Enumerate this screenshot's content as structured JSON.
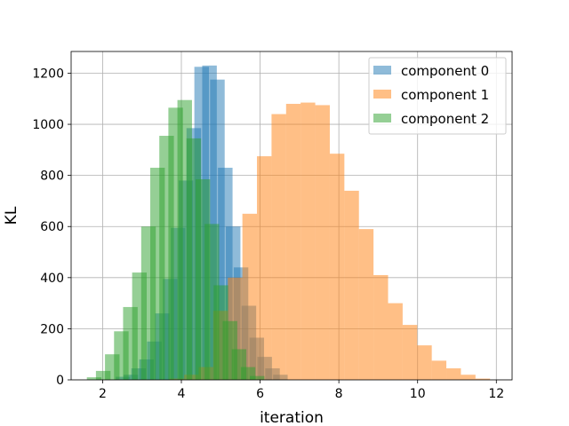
{
  "chart_data": {
    "type": "histogram",
    "xlabel": "iteration",
    "ylabel": "KL",
    "xlim": [
      1.2,
      12.4
    ],
    "ylim": [
      0,
      1285
    ],
    "xticks": [
      2,
      4,
      6,
      8,
      10,
      12
    ],
    "yticks": [
      0,
      200,
      400,
      600,
      800,
      1000,
      1200
    ],
    "grid": true,
    "legend_position": "top-right",
    "bin_width": 0.37,
    "series": [
      {
        "name": "component 0",
        "color": "#1f77b4",
        "opacity": 0.5,
        "bins": [
          {
            "x": 2.33,
            "count": 12
          },
          {
            "x": 2.53,
            "count": 20
          },
          {
            "x": 2.73,
            "count": 45
          },
          {
            "x": 2.93,
            "count": 80
          },
          {
            "x": 3.13,
            "count": 150
          },
          {
            "x": 3.33,
            "count": 260
          },
          {
            "x": 3.53,
            "count": 395
          },
          {
            "x": 3.73,
            "count": 595
          },
          {
            "x": 3.93,
            "count": 780
          },
          {
            "x": 4.13,
            "count": 985
          },
          {
            "x": 4.33,
            "count": 1225
          },
          {
            "x": 4.53,
            "count": 1230
          },
          {
            "x": 4.73,
            "count": 1175
          },
          {
            "x": 4.93,
            "count": 830
          },
          {
            "x": 5.13,
            "count": 600
          },
          {
            "x": 5.33,
            "count": 440
          },
          {
            "x": 5.53,
            "count": 290
          },
          {
            "x": 5.73,
            "count": 165
          },
          {
            "x": 5.93,
            "count": 90
          },
          {
            "x": 6.13,
            "count": 45
          },
          {
            "x": 6.33,
            "count": 20
          }
        ]
      },
      {
        "name": "component 1",
        "color": "#ff7f0e",
        "opacity": 0.5,
        "bins": [
          {
            "x": 3.7,
            "count": 5
          },
          {
            "x": 4.07,
            "count": 20
          },
          {
            "x": 4.44,
            "count": 50
          },
          {
            "x": 4.81,
            "count": 270
          },
          {
            "x": 5.18,
            "count": 400
          },
          {
            "x": 5.55,
            "count": 650
          },
          {
            "x": 5.92,
            "count": 875
          },
          {
            "x": 6.29,
            "count": 1040
          },
          {
            "x": 6.66,
            "count": 1080
          },
          {
            "x": 7.03,
            "count": 1085
          },
          {
            "x": 7.4,
            "count": 1075
          },
          {
            "x": 7.77,
            "count": 885
          },
          {
            "x": 8.14,
            "count": 740
          },
          {
            "x": 8.51,
            "count": 590
          },
          {
            "x": 8.88,
            "count": 410
          },
          {
            "x": 9.25,
            "count": 300
          },
          {
            "x": 9.62,
            "count": 215
          },
          {
            "x": 9.99,
            "count": 135
          },
          {
            "x": 10.36,
            "count": 75
          },
          {
            "x": 10.73,
            "count": 45
          },
          {
            "x": 11.1,
            "count": 20
          },
          {
            "x": 11.47,
            "count": 5
          }
        ]
      },
      {
        "name": "component 2",
        "color": "#2ca02c",
        "opacity": 0.5,
        "bins": [
          {
            "x": 1.6,
            "count": 10
          },
          {
            "x": 1.83,
            "count": 35
          },
          {
            "x": 2.06,
            "count": 100
          },
          {
            "x": 2.29,
            "count": 190
          },
          {
            "x": 2.52,
            "count": 285
          },
          {
            "x": 2.75,
            "count": 420
          },
          {
            "x": 2.98,
            "count": 600
          },
          {
            "x": 3.21,
            "count": 830
          },
          {
            "x": 3.44,
            "count": 955
          },
          {
            "x": 3.67,
            "count": 1065
          },
          {
            "x": 3.9,
            "count": 1095
          },
          {
            "x": 4.13,
            "count": 945
          },
          {
            "x": 4.36,
            "count": 785
          },
          {
            "x": 4.59,
            "count": 610
          },
          {
            "x": 4.82,
            "count": 370
          },
          {
            "x": 5.05,
            "count": 230
          },
          {
            "x": 5.28,
            "count": 120
          },
          {
            "x": 5.51,
            "count": 50
          },
          {
            "x": 5.74,
            "count": 15
          }
        ]
      }
    ]
  }
}
